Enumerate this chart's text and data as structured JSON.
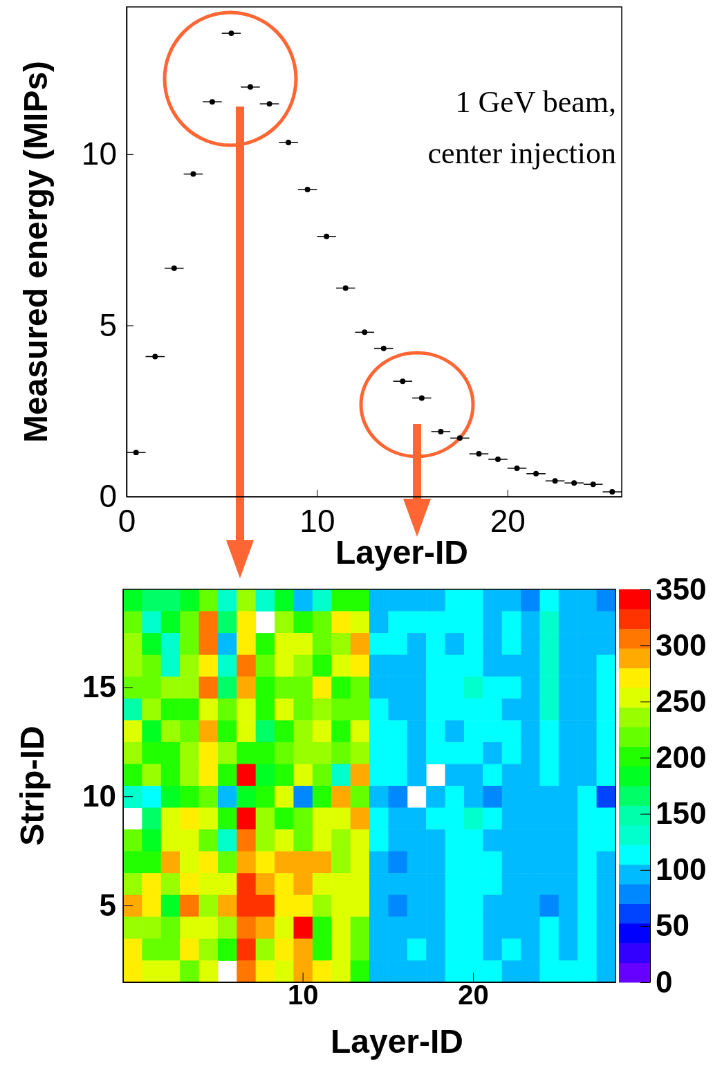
{
  "chart_data": [
    {
      "type": "scatter",
      "xlabel": "Layer-ID",
      "ylabel": "Measured energy (MIPs)",
      "annotations": [
        "1 GeV beam,",
        "center injection"
      ],
      "marker": "circle",
      "grid": false,
      "xlim": [
        0,
        26
      ],
      "ylim": [
        0,
        14.3
      ],
      "xticks": [
        0,
        10,
        20
      ],
      "yticks": [
        0,
        5,
        10
      ],
      "x": [
        0.5,
        1.5,
        2.5,
        3.5,
        4.5,
        5.5,
        6.5,
        7.5,
        8.5,
        9.5,
        10.5,
        11.5,
        12.5,
        13.5,
        14.5,
        15.5,
        16.5,
        17.5,
        18.5,
        19.5,
        20.5,
        21.5,
        22.5,
        23.5,
        24.5,
        25.5
      ],
      "series": [
        {
          "color": "#000000",
          "values": [
            1.29,
            4.09,
            6.67,
            9.42,
            11.53,
            13.53,
            11.96,
            11.47,
            10.34,
            8.97,
            7.6,
            6.09,
            4.8,
            4.33,
            3.37,
            2.88,
            1.9,
            1.71,
            1.25,
            1.09,
            0.83,
            0.67,
            0.46,
            0.4,
            0.36,
            0.14
          ],
          "xerrors": [
            0.5,
            0.5,
            0.5,
            0.5,
            0.5,
            0.5,
            0.5,
            0.5,
            0.5,
            0.5,
            0.5,
            0.5,
            0.5,
            0.5,
            0.5,
            0.5,
            0.5,
            0.5,
            0.5,
            0.5,
            0.5,
            0.5,
            0.5,
            0.5,
            0.5,
            0.5
          ]
        }
      ]
    },
    {
      "type": "heatmap",
      "xlabel": "Layer-ID",
      "ylabel": "Strip-ID",
      "clim": [
        0,
        350
      ],
      "cticks": [
        0,
        50,
        100,
        150,
        200,
        250,
        300,
        350
      ],
      "categories": [
        null,
        null,
        null,
        null,
        null,
        null,
        null,
        null,
        null,
        "10",
        null,
        null,
        null,
        null,
        null,
        null,
        null,
        null,
        "20",
        null,
        null,
        null,
        null,
        null,
        null,
        null
      ],
      "y_categories": [
        null,
        null,
        null,
        null,
        "15",
        null,
        null,
        null,
        null,
        "10",
        null,
        null,
        null,
        null,
        "5",
        null,
        null,
        null
      ],
      "cells": [
        [
          184,
          166,
          166,
          184,
          219,
          131,
          236,
          131,
          184,
          96,
          131,
          201,
          201,
          96,
          96,
          96,
          96,
          114,
          114,
          96,
          96,
          79,
          114,
          96,
          96,
          79
        ],
        [
          219,
          131,
          184,
          219,
          306,
          166,
          271,
          null,
          236,
          201,
          219,
          271,
          254,
          96,
          114,
          114,
          114,
          114,
          114,
          96,
          114,
          96,
          131,
          96,
          96,
          96
        ],
        [
          236,
          184,
          131,
          219,
          306,
          96,
          271,
          201,
          254,
          254,
          219,
          236,
          289,
          114,
          114,
          96,
          114,
          96,
          114,
          96,
          114,
          96,
          131,
          96,
          96,
          96
        ],
        [
          236,
          219,
          131,
          236,
          271,
          131,
          306,
          219,
          254,
          236,
          201,
          254,
          271,
          96,
          96,
          96,
          114,
          114,
          114,
          96,
          96,
          96,
          131,
          96,
          96,
          114
        ],
        [
          219,
          219,
          236,
          236,
          306,
          166,
          289,
          201,
          219,
          219,
          271,
          201,
          219,
          96,
          96,
          96,
          114,
          114,
          131,
          114,
          114,
          96,
          131,
          96,
          96,
          114
        ],
        [
          149,
          236,
          201,
          201,
          254,
          219,
          254,
          201,
          254,
          219,
          236,
          219,
          219,
          114,
          96,
          96,
          114,
          114,
          114,
          114,
          96,
          96,
          131,
          96,
          96,
          114
        ],
        [
          254,
          184,
          236,
          219,
          289,
          201,
          254,
          166,
          201,
          236,
          254,
          201,
          254,
          114,
          114,
          96,
          114,
          96,
          114,
          114,
          114,
          96,
          114,
          96,
          96,
          114
        ],
        [
          236,
          201,
          201,
          236,
          271,
          236,
          201,
          201,
          219,
          236,
          236,
          219,
          236,
          114,
          114,
          96,
          114,
          114,
          114,
          96,
          114,
          96,
          114,
          96,
          96,
          114
        ],
        [
          201,
          236,
          201,
          236,
          271,
          201,
          341,
          184,
          201,
          254,
          219,
          131,
          289,
          114,
          114,
          96,
          null,
          96,
          96,
          114,
          96,
          96,
          114,
          96,
          96,
          114
        ],
        [
          131,
          114,
          184,
          201,
          219,
          96,
          184,
          201,
          254,
          79,
          201,
          289,
          219,
          96,
          79,
          null,
          96,
          114,
          96,
          79,
          96,
          96,
          96,
          96,
          114,
          61
        ],
        [
          null,
          166,
          254,
          271,
          254,
          201,
          341,
          236,
          201,
          219,
          254,
          254,
          289,
          114,
          96,
          96,
          114,
          114,
          131,
          114,
          96,
          96,
          96,
          96,
          114,
          114
        ],
        [
          219,
          184,
          254,
          254,
          219,
          131,
          306,
          236,
          254,
          219,
          254,
          236,
          254,
          114,
          96,
          96,
          96,
          114,
          114,
          96,
          96,
          96,
          96,
          96,
          114,
          114
        ],
        [
          201,
          201,
          289,
          254,
          271,
          219,
          289,
          271,
          289,
          289,
          289,
          236,
          254,
          96,
          79,
          96,
          96,
          114,
          114,
          114,
          96,
          96,
          96,
          96,
          114,
          96
        ],
        [
          236,
          271,
          236,
          271,
          254,
          254,
          324,
          289,
          271,
          289,
          254,
          254,
          254,
          96,
          96,
          96,
          96,
          114,
          114,
          114,
          96,
          96,
          96,
          96,
          114,
          96
        ],
        [
          289,
          271,
          184,
          306,
          236,
          289,
          324,
          324,
          271,
          271,
          236,
          254,
          254,
          96,
          79,
          96,
          96,
          114,
          114,
          96,
          96,
          96,
          79,
          96,
          114,
          96
        ],
        [
          236,
          236,
          219,
          254,
          254,
          236,
          306,
          289,
          254,
          341,
          201,
          254,
          219,
          96,
          96,
          96,
          96,
          114,
          114,
          96,
          96,
          96,
          114,
          96,
          114,
          96
        ],
        [
          271,
          219,
          219,
          271,
          236,
          201,
          324,
          236,
          271,
          289,
          201,
          254,
          219,
          96,
          96,
          114,
          96,
          114,
          114,
          96,
          114,
          96,
          114,
          96,
          114,
          96
        ],
        [
          271,
          254,
          254,
          219,
          254,
          null,
          306,
          271,
          254,
          289,
          271,
          254,
          201,
          96,
          96,
          96,
          96,
          114,
          114,
          114,
          96,
          96,
          114,
          114,
          114,
          96
        ]
      ]
    }
  ]
}
